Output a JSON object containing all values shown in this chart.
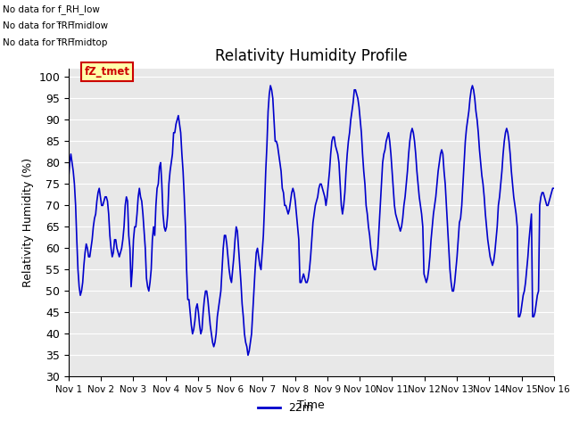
{
  "title": "Relativity Humidity Profile",
  "xlabel": "Time",
  "ylabel": "Relativity Humidity (%)",
  "ylim": [
    30,
    102
  ],
  "yticks": [
    30,
    35,
    40,
    45,
    50,
    55,
    60,
    65,
    70,
    75,
    80,
    85,
    90,
    95,
    100
  ],
  "line_color": "#0000cc",
  "line_width": 1.2,
  "plot_bg_color": "#e8e8e8",
  "legend_label": "22m",
  "legend_color": "#0000cc",
  "no_data_texts": [
    "No data for f_RH_low",
    "No data for f̅RH̅midlow",
    "No data for f̅RH̅midtop"
  ],
  "tz_tmet_text": "fZ_tmet",
  "x_tick_labels": [
    "Nov 1",
    "Nov 2",
    "Nov 3",
    "Nov 4",
    "Nov 5",
    "Nov 6",
    "Nov 7",
    "Nov 8",
    "Nov 9",
    "Nov 10",
    "Nov 11",
    "Nov 12",
    "Nov 13",
    "Nov 14",
    "Nov 15",
    "Nov 16"
  ],
  "x_tick_positions": [
    0,
    1,
    2,
    3,
    4,
    5,
    6,
    7,
    8,
    9,
    10,
    11,
    12,
    13,
    14,
    15
  ],
  "humidity_data": [
    76,
    80,
    82,
    80,
    78,
    75,
    70,
    62,
    55,
    51,
    49,
    50,
    52,
    56,
    59,
    61,
    60,
    58,
    58,
    60,
    62,
    65,
    67,
    68,
    71,
    73,
    74,
    72,
    70,
    70,
    71,
    72,
    72,
    71,
    68,
    63,
    60,
    58,
    59,
    62,
    62,
    60,
    59,
    58,
    59,
    60,
    62,
    65,
    70,
    72,
    71,
    63,
    60,
    51,
    55,
    62,
    65,
    65,
    68,
    72,
    74,
    72,
    71,
    68,
    64,
    60,
    53,
    51,
    50,
    52,
    55,
    62,
    65,
    63,
    70,
    74,
    75,
    79,
    80,
    75,
    68,
    65,
    64,
    65,
    68,
    75,
    78,
    80,
    82,
    87,
    87,
    89,
    90,
    91,
    89,
    87,
    82,
    78,
    72,
    65,
    55,
    48,
    48,
    45,
    42,
    40,
    41,
    43,
    46,
    47,
    45,
    42,
    40,
    41,
    45,
    48,
    50,
    50,
    48,
    45,
    42,
    40,
    38,
    37,
    38,
    40,
    44,
    46,
    48,
    50,
    55,
    60,
    63,
    63,
    61,
    58,
    55,
    53,
    52,
    55,
    58,
    62,
    65,
    64,
    60,
    56,
    52,
    47,
    44,
    40,
    38,
    37,
    35,
    36,
    38,
    40,
    45,
    50,
    55,
    59,
    60,
    58,
    56,
    55,
    59,
    63,
    70,
    78,
    84,
    92,
    96,
    98,
    97,
    95,
    90,
    85,
    85,
    84,
    82,
    80,
    78,
    74,
    73,
    70,
    70,
    69,
    68,
    69,
    71,
    73,
    74,
    73,
    71,
    68,
    65,
    62,
    52,
    52,
    53,
    54,
    53,
    52,
    52,
    53,
    55,
    58,
    62,
    66,
    68,
    70,
    71,
    72,
    74,
    75,
    75,
    74,
    73,
    72,
    70,
    72,
    75,
    78,
    82,
    85,
    86,
    86,
    84,
    83,
    82,
    80,
    75,
    70,
    68,
    70,
    73,
    78,
    82,
    85,
    87,
    90,
    92,
    94,
    97,
    97,
    96,
    95,
    93,
    90,
    87,
    82,
    78,
    75,
    70,
    68,
    65,
    63,
    60,
    58,
    56,
    55,
    55,
    57,
    60,
    65,
    70,
    75,
    80,
    82,
    83,
    85,
    86,
    87,
    85,
    82,
    78,
    74,
    70,
    68,
    67,
    66,
    65,
    64,
    65,
    67,
    70,
    72,
    75,
    78,
    82,
    85,
    87,
    88,
    87,
    85,
    82,
    78,
    75,
    72,
    70,
    68,
    65,
    54,
    53,
    52,
    53,
    55,
    58,
    62,
    65,
    68,
    70,
    72,
    75,
    78,
    80,
    82,
    83,
    82,
    78,
    75,
    70,
    65,
    60,
    55,
    52,
    50,
    50,
    52,
    55,
    58,
    62,
    66,
    67,
    70,
    75,
    80,
    85,
    88,
    90,
    92,
    95,
    97,
    98,
    97,
    95,
    92,
    90,
    87,
    83,
    80,
    77,
    75,
    72,
    68,
    65,
    62,
    60,
    58,
    57,
    56,
    57,
    59,
    62,
    65,
    70,
    72,
    75,
    78,
    82,
    85,
    87,
    88,
    87,
    85,
    82,
    78,
    75,
    72,
    70,
    68,
    65,
    44,
    44,
    45,
    47,
    49,
    50,
    52,
    55,
    58,
    62,
    65,
    68,
    44,
    44,
    45,
    47,
    49,
    50,
    70,
    72,
    73,
    73,
    72,
    71,
    70,
    70,
    71,
    72,
    73,
    74,
    74
  ]
}
